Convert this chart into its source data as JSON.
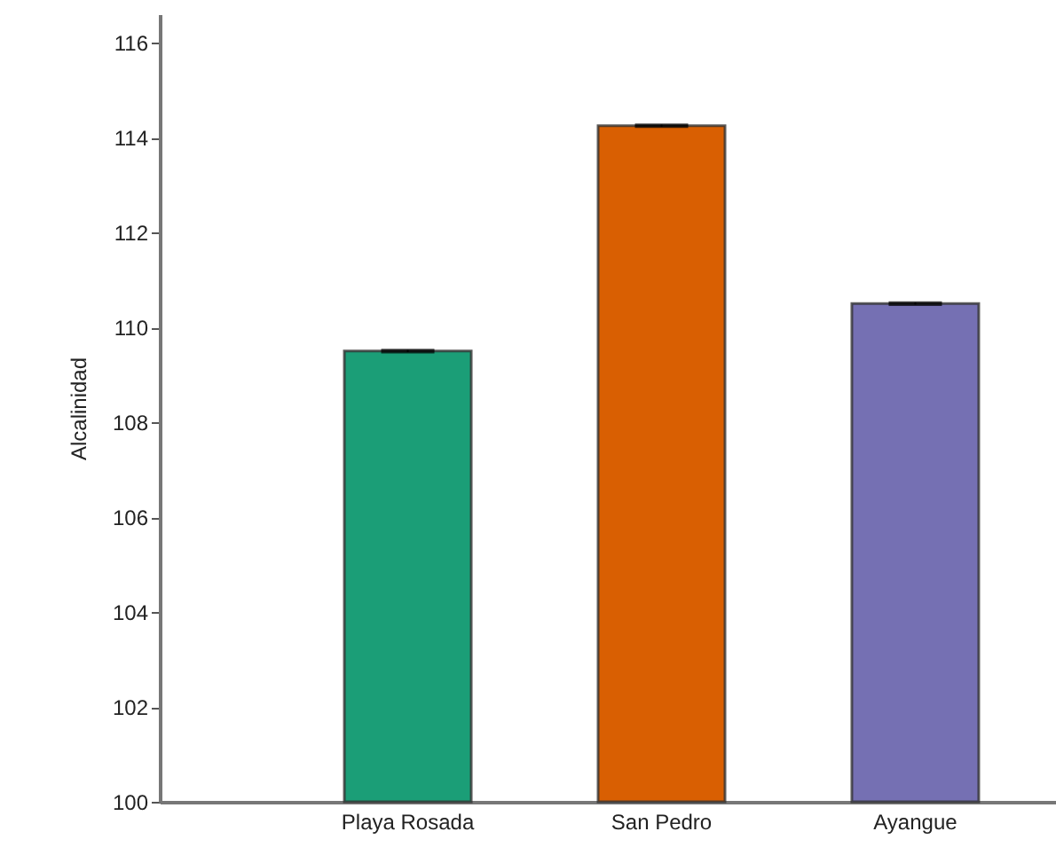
{
  "chart_data": {
    "type": "bar",
    "ylabel": "Alcalinidad",
    "categories": [
      "Playa Rosada",
      "San Pedro",
      "Ayangue"
    ],
    "values": [
      109.5,
      114.25,
      110.5
    ],
    "colors": [
      "#1b9e77",
      "#d95f02",
      "#7570b3"
    ],
    "errors": [
      0.02,
      0.02,
      0.02
    ],
    "ylim": [
      100,
      116.6
    ],
    "yticks": [
      100,
      102,
      104,
      106,
      108,
      110,
      112,
      114,
      116
    ],
    "grid": false
  }
}
